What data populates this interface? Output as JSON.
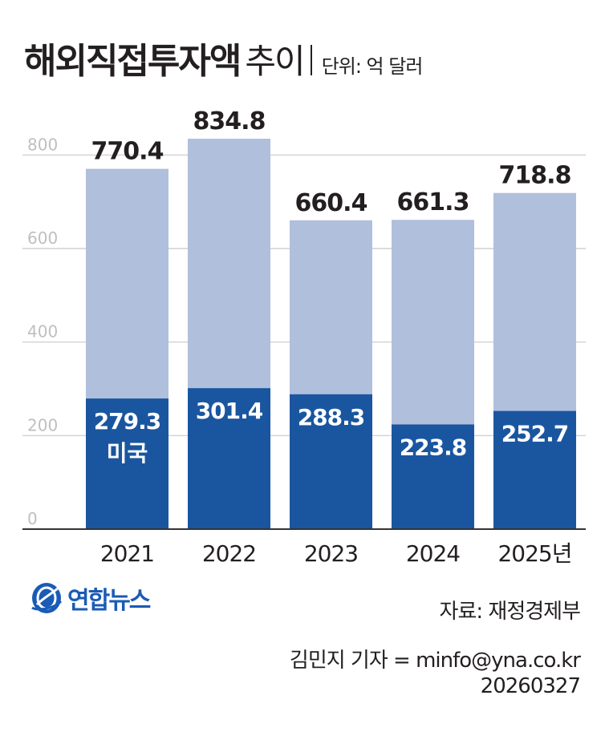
{
  "header": {
    "title_main": "해외직접투자액",
    "title_sub": "추이",
    "unit": "단위: 억 달러"
  },
  "chart_data": {
    "type": "bar",
    "stacked": true,
    "categories": [
      "2021",
      "2022",
      "2023",
      "2024",
      "2025년"
    ],
    "totals": [
      770.4,
      834.8,
      660.4,
      661.3,
      718.8
    ],
    "total_labels": [
      "770.4",
      "834.8",
      "660.4",
      "661.3",
      "718.8"
    ],
    "series": [
      {
        "name": "미국",
        "values": [
          279.3,
          301.4,
          288.3,
          223.8,
          252.7
        ],
        "labels": [
          "279.3",
          "301.4",
          "288.3",
          "223.8",
          "252.7"
        ],
        "color": "#1a56a0"
      },
      {
        "values": [
          491.1,
          533.4,
          372.1,
          437.5,
          466.1
        ],
        "color": "#b0bfdb"
      }
    ],
    "yticks": [
      "0",
      "200",
      "400",
      "600",
      "800"
    ],
    "ylim": [
      0,
      840
    ],
    "grid": true,
    "colors": {
      "us": "#1a56a0",
      "rest": "#b0bfdb",
      "grid": "#c8c8c8",
      "axis": "#333333",
      "tick_text": "#bfbfbf"
    }
  },
  "footer": {
    "logo_text": "연합뉴스",
    "logo_icon": "yonhap-globe-icon",
    "source": "자료: 재정경제부",
    "byline": "김민지 기자 = minfo@yna.co.kr",
    "date": "20260327"
  }
}
